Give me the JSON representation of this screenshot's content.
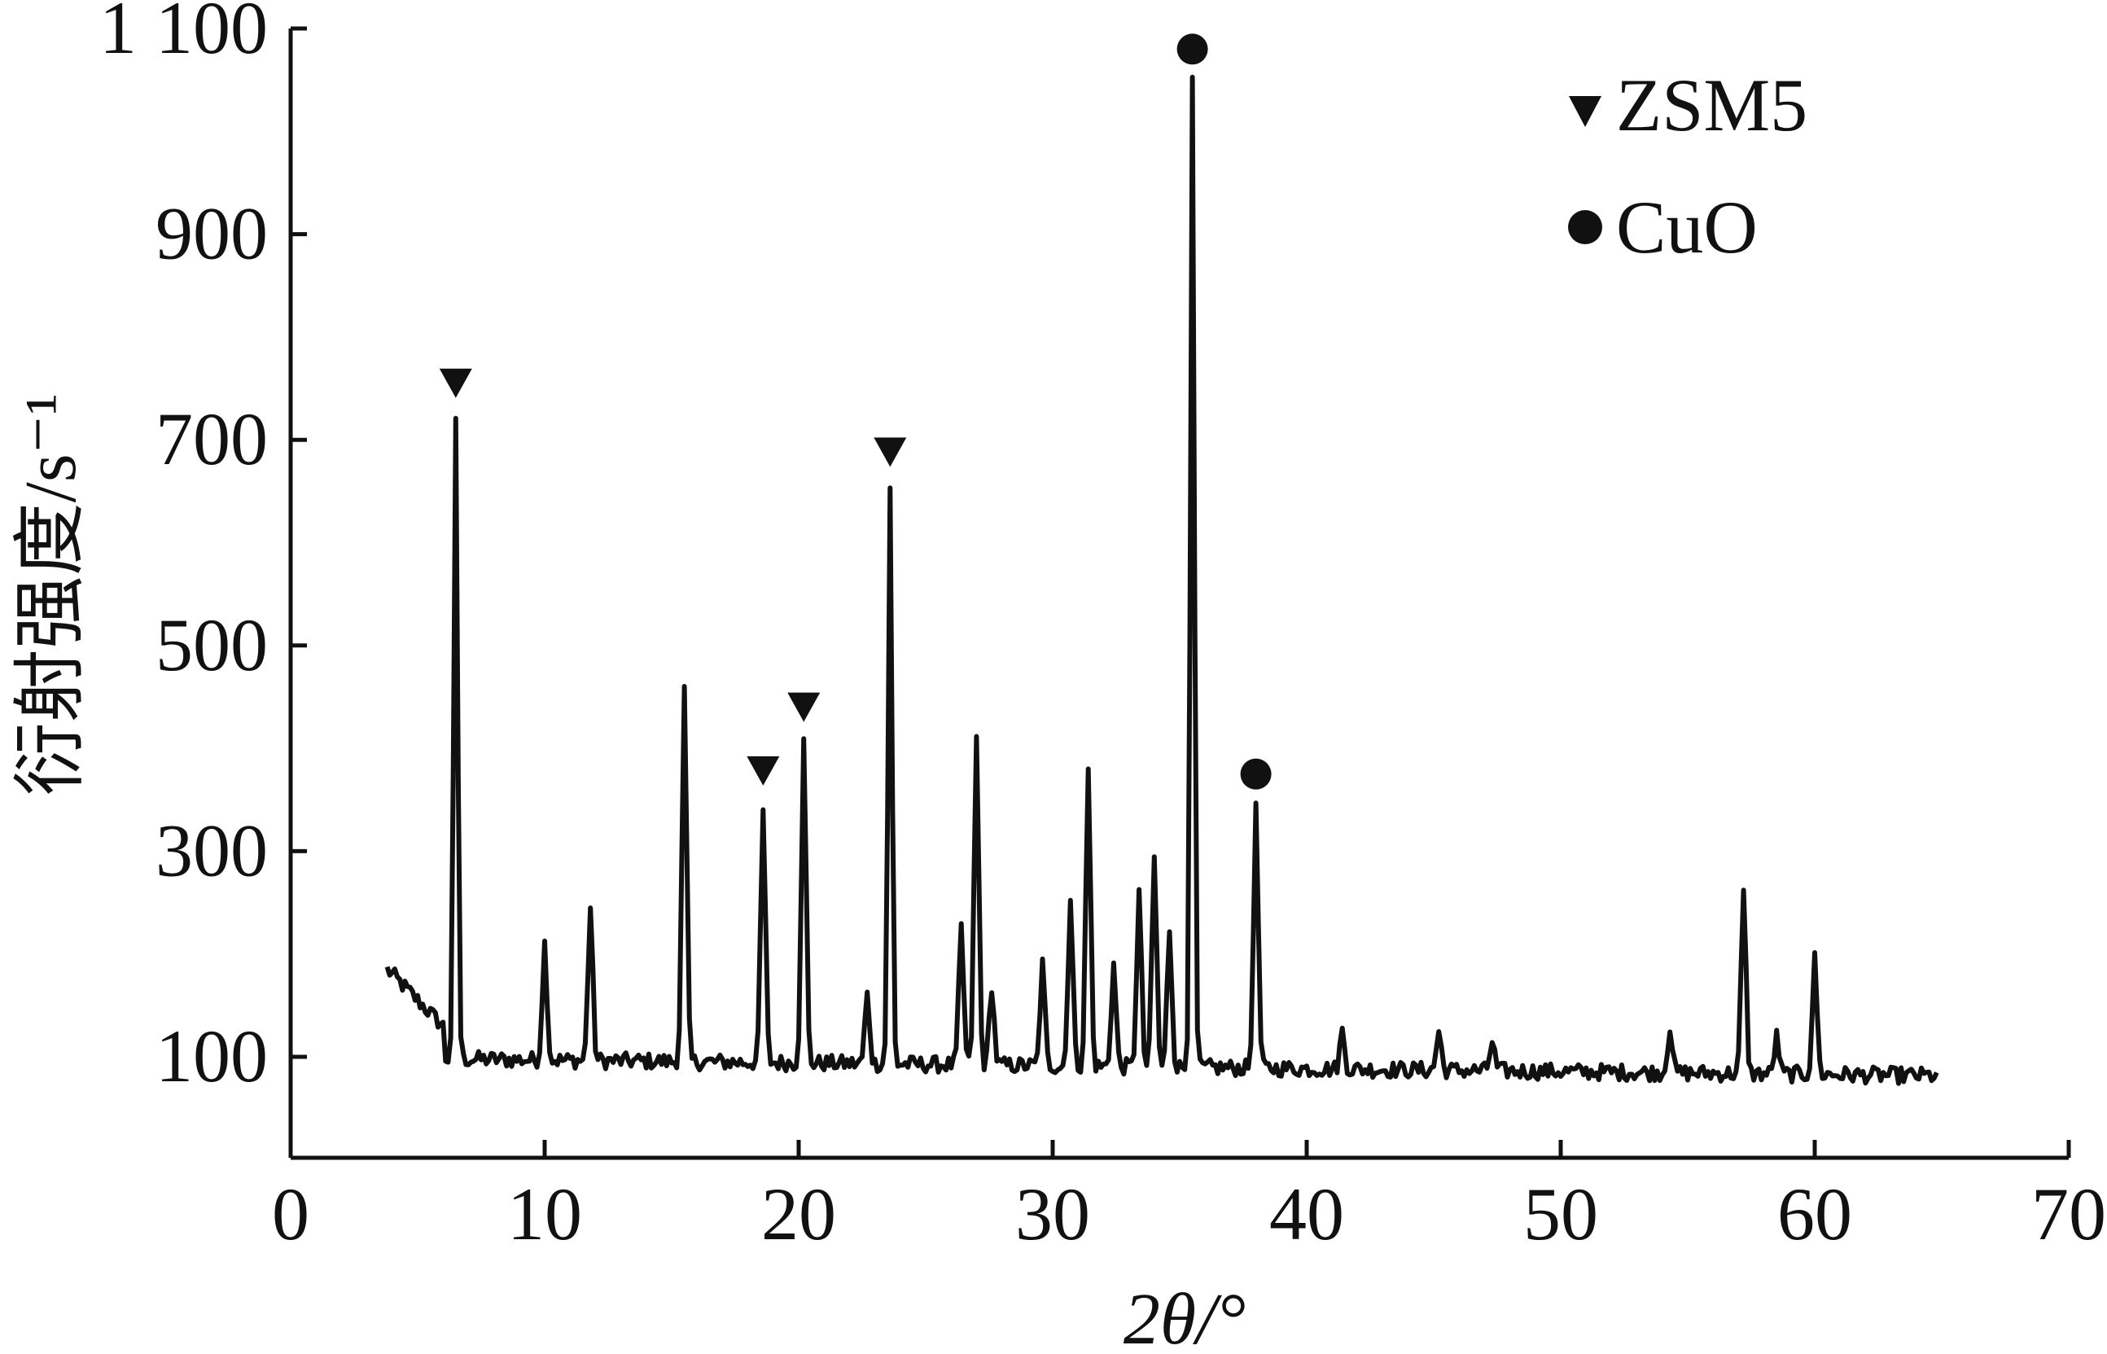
{
  "chart_data": {
    "type": "line",
    "title": "",
    "xlabel": "2θ/°",
    "ylabel": "衍射强度/s⁻¹",
    "xlim": [
      0,
      70
    ],
    "ylim": [
      0,
      1100
    ],
    "x_ticks": [
      0,
      10,
      20,
      30,
      40,
      50,
      60,
      70
    ],
    "x_tick_labels": [
      "0",
      "10",
      "20",
      "30",
      "40",
      "50",
      "60",
      "70"
    ],
    "y_ticks": [
      100,
      300,
      500,
      700,
      900,
      1100
    ],
    "y_tick_labels": [
      "100",
      "300",
      "500",
      "700",
      "900",
      "1 100"
    ],
    "grid": false,
    "legend": {
      "placement": "top-right",
      "entries": [
        {
          "label": "ZSM5",
          "marker": "triangle-down"
        },
        {
          "label": "CuO",
          "marker": "circle"
        }
      ]
    },
    "color": "#111111",
    "peaks": [
      {
        "x": 6.5,
        "y": 715
      },
      {
        "x": 10.0,
        "y": 210
      },
      {
        "x": 11.8,
        "y": 245
      },
      {
        "x": 15.5,
        "y": 455
      },
      {
        "x": 18.6,
        "y": 340
      },
      {
        "x": 20.2,
        "y": 405
      },
      {
        "x": 22.7,
        "y": 160
      },
      {
        "x": 23.6,
        "y": 650
      },
      {
        "x": 26.4,
        "y": 225
      },
      {
        "x": 27.0,
        "y": 410
      },
      {
        "x": 27.6,
        "y": 170
      },
      {
        "x": 29.6,
        "y": 190
      },
      {
        "x": 30.7,
        "y": 255
      },
      {
        "x": 31.4,
        "y": 380
      },
      {
        "x": 32.4,
        "y": 190
      },
      {
        "x": 33.4,
        "y": 260
      },
      {
        "x": 34.0,
        "y": 295
      },
      {
        "x": 34.6,
        "y": 225
      },
      {
        "x": 35.5,
        "y": 1045
      },
      {
        "x": 38.0,
        "y": 340
      },
      {
        "x": 41.4,
        "y": 125
      },
      {
        "x": 45.2,
        "y": 125
      },
      {
        "x": 47.3,
        "y": 115
      },
      {
        "x": 54.3,
        "y": 130
      },
      {
        "x": 57.2,
        "y": 260
      },
      {
        "x": 58.5,
        "y": 120
      },
      {
        "x": 60.0,
        "y": 195
      }
    ],
    "markers": [
      {
        "type": "triangle-down",
        "phase": "ZSM5",
        "x": 6.5,
        "y": 755
      },
      {
        "type": "triangle-down",
        "phase": "ZSM5",
        "x": 18.6,
        "y": 378
      },
      {
        "type": "triangle-down",
        "phase": "ZSM5",
        "x": 20.2,
        "y": 440
      },
      {
        "type": "triangle-down",
        "phase": "ZSM5",
        "x": 23.6,
        "y": 688
      },
      {
        "type": "circle",
        "phase": "CuO",
        "x": 35.5,
        "y": 1080
      },
      {
        "type": "circle",
        "phase": "CuO",
        "x": 38.0,
        "y": 375
      }
    ]
  }
}
